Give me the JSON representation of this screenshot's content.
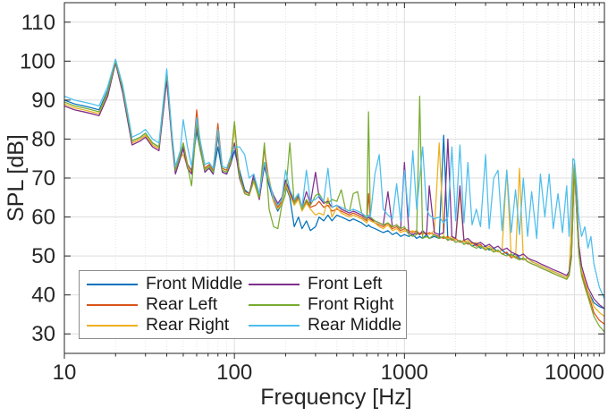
{
  "figure": {
    "background": "#ffffff",
    "axis_color": "#262626",
    "grid_major_color": "#dedede",
    "grid_minor_color": "#e2e2e2",
    "legend_border_color": "#8c8c8c"
  },
  "chart_data": {
    "type": "line",
    "title": "",
    "xlabel": "Frequency [Hz]",
    "ylabel": "SPL [dB]",
    "xscale": "log",
    "xlim": [
      10,
      15000
    ],
    "ylim": [
      25,
      115
    ],
    "grid": true,
    "minor_grid_x": true,
    "legend_position": "southwest",
    "legend_columns": 2,
    "xticks": [
      {
        "value": 10,
        "label": "10"
      },
      {
        "value": 100,
        "label": "100"
      },
      {
        "value": 1000,
        "label": "1000"
      },
      {
        "value": 10000,
        "label": "10000"
      }
    ],
    "xminorticks": [
      20,
      30,
      40,
      50,
      60,
      70,
      80,
      90,
      200,
      300,
      400,
      500,
      600,
      700,
      800,
      900,
      2000,
      3000,
      4000,
      5000,
      6000,
      7000,
      8000,
      9000,
      11000,
      12000,
      13000,
      14000
    ],
    "yticks": [
      {
        "value": 30,
        "label": "30"
      },
      {
        "value": 40,
        "label": "40"
      },
      {
        "value": 50,
        "label": "50"
      },
      {
        "value": 60,
        "label": "60"
      },
      {
        "value": 70,
        "label": "70"
      },
      {
        "value": 80,
        "label": "80"
      },
      {
        "value": 90,
        "label": "90"
      },
      {
        "value": 100,
        "label": "100"
      },
      {
        "value": 110,
        "label": "110"
      }
    ],
    "freq": [
      10,
      11.5,
      13,
      14.5,
      16,
      18,
      20,
      22,
      25,
      28,
      30,
      33,
      36,
      40,
      43,
      45,
      48,
      50,
      53,
      56,
      60,
      63,
      67,
      71,
      75,
      80,
      85,
      90,
      95,
      100,
      107,
      115,
      122,
      130,
      140,
      150,
      160,
      170,
      180,
      190,
      200,
      212,
      225,
      238,
      250,
      265,
      280,
      300,
      315,
      335,
      355,
      375,
      400,
      425,
      450,
      475,
      500,
      530,
      560,
      600,
      615,
      630,
      670,
      710,
      750,
      800,
      850,
      900,
      950,
      1000,
      1060,
      1120,
      1180,
      1230,
      1280,
      1350,
      1400,
      1500,
      1600,
      1700,
      1800,
      1900,
      2000,
      2120,
      2240,
      2360,
      2500,
      2650,
      2800,
      3000,
      3150,
      3350,
      3550,
      3750,
      4000,
      4250,
      4500,
      4750,
      5000,
      5300,
      5600,
      6000,
      6300,
      6700,
      7100,
      7500,
      8000,
      8500,
      9000,
      9300,
      9600,
      9800,
      10000,
      10300,
      10600,
      11000,
      11500,
      12000,
      12500,
      13000,
      14000,
      15000
    ],
    "series": [
      {
        "name": "Front Middle",
        "color": "#0072BD",
        "values": [
          90,
          89,
          88.5,
          88,
          87.5,
          92.5,
          100,
          93,
          79.5,
          80.5,
          81.5,
          79,
          78,
          97.5,
          80,
          72,
          76,
          78,
          73.5,
          72,
          82,
          77,
          72,
          73,
          71,
          78,
          71.5,
          71,
          73.5,
          77,
          72,
          67,
          66,
          70,
          65,
          73,
          68,
          64,
          61.5,
          63.5,
          68,
          65,
          57.5,
          60,
          57,
          59,
          56.5,
          57.5,
          60,
          59,
          60.5,
          59,
          60.5,
          60,
          59.5,
          59,
          59.5,
          59,
          58.5,
          57.5,
          58,
          57.5,
          57,
          56.5,
          56,
          56.5,
          55.5,
          56,
          55,
          55.5,
          55,
          55.5,
          54.5,
          55,
          54.5,
          55.5,
          54.5,
          55,
          54.5,
          81,
          54,
          54.5,
          53.5,
          54,
          53,
          53.5,
          52.5,
          53,
          52,
          52.5,
          51.5,
          52,
          51,
          51.5,
          50.5,
          50,
          50.5,
          49.5,
          49,
          49.5,
          48.5,
          48,
          47.5,
          47,
          46.5,
          46,
          45.5,
          45,
          44.5,
          45.5,
          50,
          62,
          73,
          62,
          52,
          46,
          43,
          41,
          39.5,
          38,
          37,
          36.5
        ]
      },
      {
        "name": "Rear Left",
        "color": "#D95319",
        "values": [
          88.5,
          87.5,
          87,
          86.5,
          86,
          91.5,
          100.5,
          92.5,
          79,
          80,
          81,
          78.5,
          77.5,
          97,
          79.5,
          71.5,
          75.5,
          79,
          73.5,
          71.5,
          87.5,
          78.5,
          72.5,
          73.5,
          72,
          84,
          72.5,
          72,
          74.5,
          84,
          71,
          66.5,
          66,
          69.5,
          65,
          77.5,
          69,
          64.5,
          62.5,
          64,
          69,
          66,
          63.5,
          65,
          62,
          64,
          62.5,
          63,
          64,
          62.5,
          63,
          61.5,
          62,
          61.5,
          61,
          60.5,
          61,
          60.5,
          60,
          59,
          66,
          59.5,
          58.5,
          58,
          57.5,
          58.5,
          57,
          57.5,
          56.5,
          57,
          56.5,
          56,
          56.5,
          55.5,
          56,
          55.5,
          56,
          55.5,
          55,
          54.5,
          55,
          54,
          54.5,
          53.5,
          54,
          53,
          53.5,
          52.5,
          53,
          51.5,
          52,
          51,
          51.5,
          50.5,
          51,
          49.5,
          50,
          49,
          49.5,
          48.5,
          48,
          47.5,
          47,
          46.5,
          46,
          45.5,
          45,
          44.5,
          44,
          45,
          49.5,
          61,
          72.5,
          61,
          51,
          45.5,
          42.5,
          40,
          38,
          35.5,
          33.5,
          32.5
        ]
      },
      {
        "name": "Rear Right",
        "color": "#EDB120",
        "values": [
          89,
          88,
          87.5,
          87,
          86.5,
          91.5,
          100,
          92.5,
          79,
          80,
          81,
          78.5,
          77.5,
          97,
          79.5,
          71.5,
          75.5,
          76,
          73,
          71.5,
          84,
          78,
          72,
          73,
          71.5,
          82.5,
          72,
          71.5,
          74,
          83,
          70.5,
          66,
          65.5,
          69,
          64.5,
          74,
          70,
          64,
          62,
          63.5,
          68.5,
          65.5,
          63,
          64.5,
          61.5,
          63.5,
          62,
          60.5,
          61,
          60.5,
          65,
          60,
          62.5,
          61,
          60.5,
          60,
          60.5,
          60,
          59.5,
          58.5,
          59.5,
          59,
          58.5,
          57.5,
          57,
          58,
          56.5,
          57,
          56,
          56.5,
          56,
          56.5,
          55.5,
          56,
          55.5,
          56,
          55.5,
          56.5,
          79,
          55,
          54.5,
          55,
          54,
          66,
          53.5,
          54,
          53,
          53.5,
          52.5,
          52,
          52.5,
          51.5,
          51,
          51.5,
          72,
          50,
          49.5,
          72.5,
          49,
          49.5,
          48.5,
          48,
          47.5,
          47,
          46.5,
          46,
          45.5,
          45,
          44.5,
          46,
          58,
          70,
          74,
          63,
          52.5,
          46.5,
          43.5,
          41,
          39,
          37,
          35.5,
          34.5
        ]
      },
      {
        "name": "Front Left",
        "color": "#7E2F8E",
        "values": [
          88.5,
          87.5,
          87,
          86.5,
          86,
          91,
          99.5,
          92,
          78.5,
          79.5,
          80.5,
          78,
          77,
          95,
          79,
          71,
          75,
          77.5,
          72.5,
          71,
          83,
          77.5,
          71.5,
          72.5,
          71,
          81,
          71.5,
          71,
          73.5,
          79,
          70,
          66,
          65.5,
          71,
          64.5,
          73.5,
          68.5,
          65.5,
          63.5,
          65,
          69.5,
          66.5,
          64,
          65.5,
          62.5,
          66.5,
          63.5,
          71.5,
          65,
          63.5,
          64,
          62.5,
          63,
          62,
          61.5,
          61,
          61.5,
          61,
          60.5,
          59.5,
          60,
          59.5,
          59,
          58.5,
          58,
          66.5,
          57.5,
          58,
          57,
          74,
          56,
          55.5,
          56,
          55.5,
          56.5,
          55.5,
          68,
          56,
          55.5,
          56,
          80,
          55,
          54.5,
          68,
          54,
          54.5,
          53.5,
          53,
          53.5,
          52.5,
          53,
          52,
          52.5,
          51.5,
          52,
          51,
          50.5,
          50,
          50.5,
          49.5,
          49,
          48.5,
          48,
          47.5,
          47,
          46.5,
          46,
          45.5,
          45,
          46,
          50.5,
          62.5,
          73.5,
          63,
          53,
          47.5,
          44.5,
          42,
          40.5,
          39,
          37.5,
          36.5
        ]
      },
      {
        "name": "Front Right",
        "color": "#77AC30",
        "values": [
          89.5,
          88.5,
          88,
          87.5,
          87,
          92,
          100,
          93,
          79.5,
          80.5,
          81.5,
          79,
          78,
          97,
          80,
          72,
          76,
          79,
          73,
          68,
          84.5,
          77,
          72,
          73,
          71.5,
          82,
          72,
          71.5,
          74,
          84.5,
          70.5,
          66,
          65.5,
          69.5,
          65,
          79,
          62,
          57.5,
          57,
          63,
          66,
          79,
          63.5,
          66,
          62,
          64.5,
          63,
          65.5,
          66,
          64,
          63.5,
          64.5,
          64,
          67,
          62,
          61.5,
          66,
          66.5,
          61,
          59.5,
          87,
          60,
          59,
          58.5,
          58,
          58.5,
          57.5,
          58,
          57,
          57.5,
          55.5,
          55,
          55.5,
          91,
          54.5,
          55,
          54.5,
          55.5,
          54.5,
          55,
          54,
          54.5,
          53.5,
          54,
          53,
          53.5,
          52.5,
          52,
          52.5,
          51.5,
          52,
          51,
          51.5,
          50.5,
          50,
          50.5,
          49.5,
          49,
          49.5,
          48.5,
          48,
          47.5,
          47,
          46.5,
          46,
          45.5,
          45,
          44.5,
          44,
          45,
          49.5,
          61.5,
          73,
          61,
          50.5,
          45,
          42,
          39.5,
          37,
          34.5,
          32,
          30.5
        ]
      },
      {
        "name": "Rear Middle",
        "color": "#4DBEEE",
        "values": [
          91,
          90,
          89.5,
          89,
          88.5,
          93.5,
          100.5,
          94,
          80.5,
          81.5,
          82.5,
          80,
          79,
          98,
          81,
          73,
          77,
          85,
          78,
          73,
          85.5,
          79.5,
          73.5,
          74,
          72.5,
          82.5,
          73,
          72.5,
          75.5,
          78,
          78,
          76,
          70,
          71,
          66,
          74,
          69,
          65,
          63,
          64.5,
          72,
          67,
          64.5,
          66,
          62.5,
          72,
          64,
          64.5,
          65.5,
          64,
          72.5,
          62.5,
          63,
          62.5,
          62,
          61.5,
          62,
          61.5,
          61,
          60,
          60.5,
          60,
          71,
          76,
          62,
          60.5,
          59.5,
          68.5,
          59,
          72,
          60,
          77,
          62,
          70,
          78,
          62,
          60.5,
          59.5,
          60,
          58.5,
          60,
          78,
          59,
          78.5,
          58.5,
          74,
          58,
          62,
          57.5,
          76,
          57,
          70,
          72,
          56.5,
          72,
          56,
          67,
          55.5,
          70,
          55,
          66.5,
          54.5,
          71,
          60,
          71,
          57,
          66,
          56,
          68,
          55,
          66,
          75,
          74.5,
          68,
          60,
          55,
          57.5,
          52,
          55,
          48,
          42,
          39
        ]
      }
    ]
  },
  "legend": {
    "entries": [
      {
        "label": "Front Middle",
        "color": "#0072BD"
      },
      {
        "label": "Rear Left",
        "color": "#D95319"
      },
      {
        "label": "Rear Right",
        "color": "#EDB120"
      },
      {
        "label": "Front Left",
        "color": "#7E2F8E"
      },
      {
        "label": "Front Right",
        "color": "#77AC30"
      },
      {
        "label": "Rear Middle",
        "color": "#4DBEEE"
      }
    ]
  }
}
